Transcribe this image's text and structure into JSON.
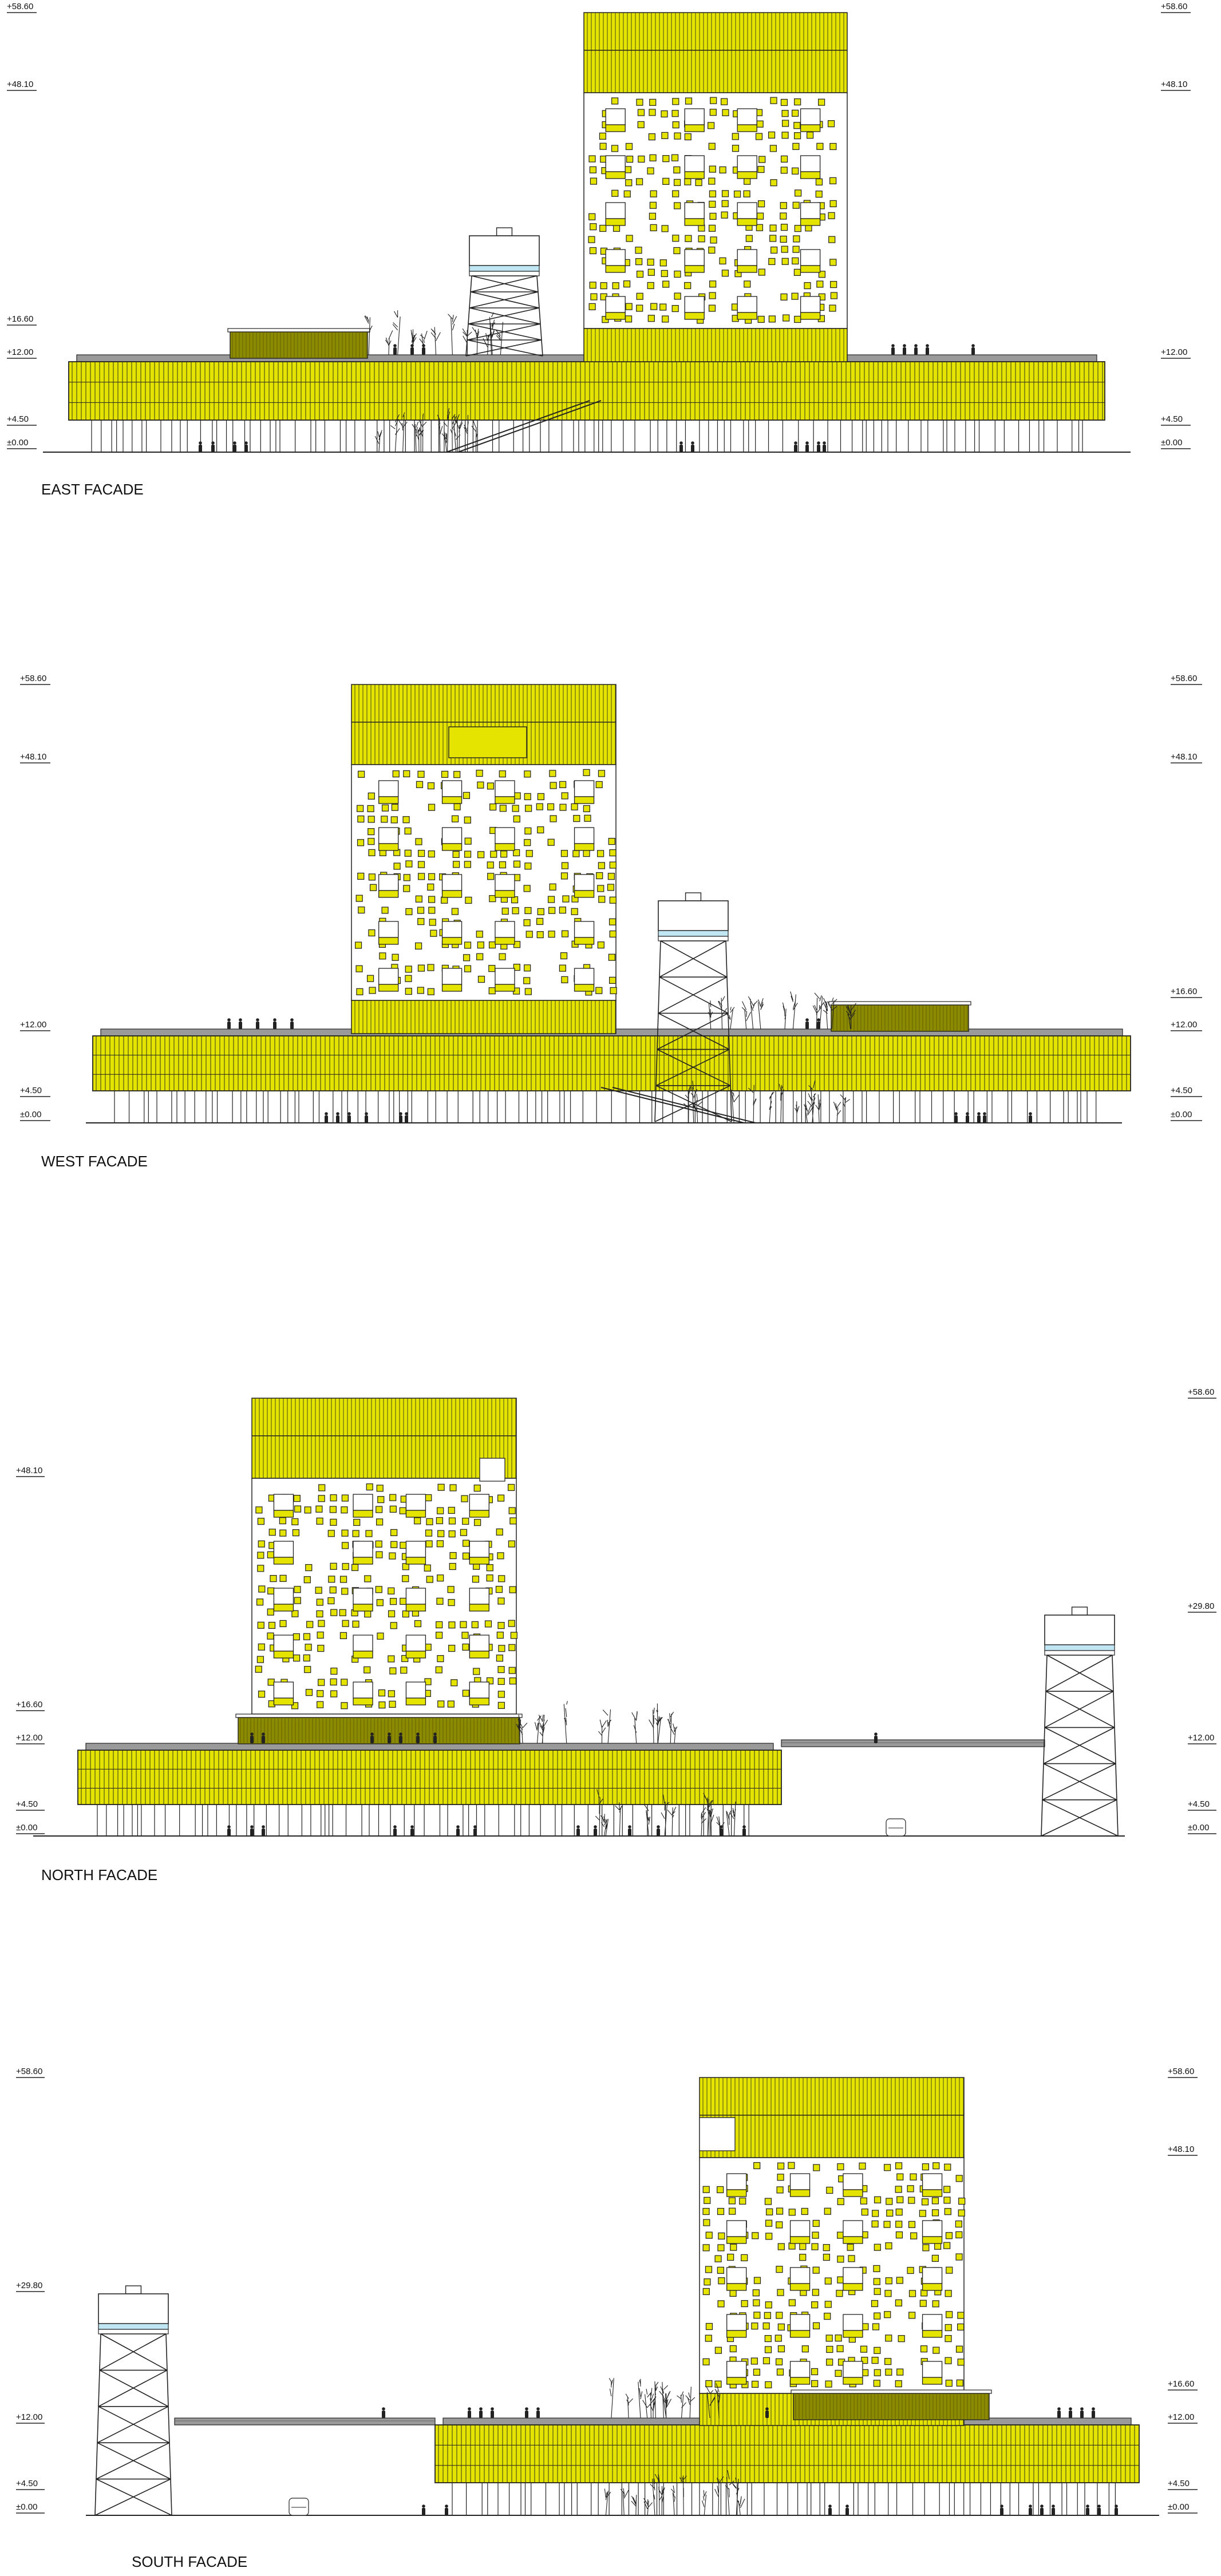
{
  "colors": {
    "cladding": "#e4e400",
    "cladding_dark": "#8c8a00",
    "line": "#222222",
    "roof": "#9a9a9a",
    "water": "#bfe6f2"
  },
  "facades": [
    {
      "id": "east",
      "title": "EAST FACADE",
      "levels_left": [
        "+58.60",
        "+48.10",
        "+16.60",
        "+12.00",
        "+4.50",
        "±0.00"
      ],
      "levels_right": [
        "+58.60",
        "+48.10",
        "+12.00",
        "+4.50",
        "±0.00"
      ]
    },
    {
      "id": "west",
      "title": "WEST FACADE",
      "levels_left": [
        "+58.60",
        "+48.10",
        "+12.00",
        "+4.50",
        "±0.00"
      ],
      "levels_right": [
        "+58.60",
        "+48.10",
        "+16.60",
        "+12.00",
        "+4.50",
        "±0.00"
      ]
    },
    {
      "id": "north",
      "title": "NORTH FACADE",
      "levels_left": [
        "+48.10",
        "+16.60",
        "+12.00",
        "+4.50",
        "±0.00"
      ],
      "levels_right": [
        "+58.60",
        "+29.80",
        "+12.00",
        "+4.50",
        "±0.00"
      ]
    },
    {
      "id": "south",
      "title": "SOUTH FACADE",
      "levels_left": [
        "+58.60",
        "+29.80",
        "+12.00",
        "+4.50",
        "±0.00"
      ],
      "levels_right": [
        "+58.60",
        "+48.10",
        "+16.60",
        "+12.00",
        "+4.50",
        "±0.00"
      ]
    }
  ]
}
